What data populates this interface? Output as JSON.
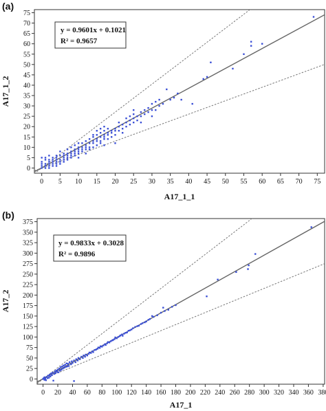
{
  "chart_data": [
    {
      "panel_label": "(a)",
      "type": "scatter",
      "xlabel": "A17_1_1",
      "ylabel": "A17_1_2",
      "xlim": [
        -2,
        77
      ],
      "ylim": [
        -2.5,
        76.5
      ],
      "xticks": [
        0,
        5,
        10,
        15,
        20,
        25,
        30,
        35,
        40,
        45,
        50,
        55,
        60,
        65,
        70,
        75
      ],
      "yticks": [
        0,
        5,
        10,
        15,
        20,
        25,
        30,
        35,
        40,
        45,
        50,
        55,
        60,
        65,
        70,
        75
      ],
      "grid": false,
      "equation": "y = 0.9601x + 0.1021",
      "r2": "R² = 0.9657",
      "fit": {
        "slope": 0.9601,
        "intercept": 0.1021
      },
      "bounds": [
        {
          "slope": 1.35,
          "intercept": 0
        },
        {
          "slope": 0.65,
          "intercept": 0
        }
      ],
      "colors": {
        "points": "#3a4fd6",
        "fit": "#666666",
        "bounds": "#777777"
      },
      "points": [
        [
          0,
          0
        ],
        [
          0,
          1
        ],
        [
          0,
          2
        ],
        [
          0,
          3
        ],
        [
          0,
          5
        ],
        [
          1,
          0
        ],
        [
          1,
          1
        ],
        [
          1,
          2
        ],
        [
          1,
          4
        ],
        [
          1,
          5
        ],
        [
          2,
          0
        ],
        [
          2,
          1
        ],
        [
          2,
          2
        ],
        [
          2,
          3
        ],
        [
          2,
          4
        ],
        [
          2,
          6
        ],
        [
          3,
          1
        ],
        [
          3,
          2
        ],
        [
          3,
          3
        ],
        [
          3,
          4
        ],
        [
          3,
          5
        ],
        [
          4,
          1
        ],
        [
          4,
          2
        ],
        [
          4,
          3
        ],
        [
          4,
          4
        ],
        [
          4,
          5
        ],
        [
          4,
          6
        ],
        [
          5,
          2
        ],
        [
          5,
          3
        ],
        [
          5,
          4
        ],
        [
          5,
          6
        ],
        [
          5,
          8
        ],
        [
          6,
          3
        ],
        [
          6,
          4
        ],
        [
          6,
          5
        ],
        [
          6,
          6
        ],
        [
          6,
          7
        ],
        [
          7,
          4
        ],
        [
          7,
          5
        ],
        [
          7,
          6
        ],
        [
          7,
          7
        ],
        [
          7,
          9
        ],
        [
          8,
          5
        ],
        [
          8,
          6
        ],
        [
          8,
          7
        ],
        [
          8,
          8
        ],
        [
          8,
          10
        ],
        [
          9,
          6
        ],
        [
          9,
          7
        ],
        [
          9,
          8
        ],
        [
          9,
          9
        ],
        [
          9,
          11
        ],
        [
          10,
          5
        ],
        [
          10,
          7
        ],
        [
          10,
          8
        ],
        [
          10,
          9
        ],
        [
          10,
          10
        ],
        [
          10,
          12
        ],
        [
          11,
          8
        ],
        [
          11,
          9
        ],
        [
          11,
          10
        ],
        [
          11,
          12
        ],
        [
          12,
          7
        ],
        [
          12,
          9
        ],
        [
          12,
          10
        ],
        [
          12,
          11
        ],
        [
          12,
          13
        ],
        [
          13,
          9
        ],
        [
          13,
          10
        ],
        [
          13,
          12
        ],
        [
          13,
          14
        ],
        [
          14,
          10
        ],
        [
          14,
          12
        ],
        [
          14,
          13
        ],
        [
          14,
          15
        ],
        [
          14,
          16
        ],
        [
          15,
          11
        ],
        [
          15,
          13
        ],
        [
          15,
          14
        ],
        [
          15,
          16
        ],
        [
          15,
          18
        ],
        [
          16,
          12
        ],
        [
          16,
          13
        ],
        [
          16,
          15
        ],
        [
          16,
          17
        ],
        [
          16,
          19
        ],
        [
          17,
          11
        ],
        [
          17,
          14
        ],
        [
          17,
          15
        ],
        [
          17,
          16
        ],
        [
          17,
          18
        ],
        [
          17,
          20
        ],
        [
          18,
          14
        ],
        [
          18,
          16
        ],
        [
          18,
          17
        ],
        [
          18,
          19
        ],
        [
          19,
          15
        ],
        [
          19,
          17
        ],
        [
          19,
          18
        ],
        [
          20,
          12
        ],
        [
          20,
          16
        ],
        [
          20,
          18
        ],
        [
          20,
          19
        ],
        [
          21,
          18
        ],
        [
          21,
          20
        ],
        [
          21,
          22
        ],
        [
          22,
          17
        ],
        [
          22,
          19
        ],
        [
          22,
          21
        ],
        [
          23,
          20
        ],
        [
          23,
          22
        ],
        [
          23,
          24
        ],
        [
          24,
          21
        ],
        [
          24,
          23
        ],
        [
          24,
          25
        ],
        [
          25,
          22
        ],
        [
          25,
          24
        ],
        [
          25,
          26
        ],
        [
          25,
          28
        ],
        [
          26,
          23
        ],
        [
          26,
          25
        ],
        [
          27,
          22
        ],
        [
          27,
          25
        ],
        [
          27,
          27
        ],
        [
          28,
          26
        ],
        [
          28,
          28
        ],
        [
          29,
          27
        ],
        [
          29,
          29
        ],
        [
          30,
          25
        ],
        [
          30,
          28
        ],
        [
          30,
          31
        ],
        [
          31,
          28
        ],
        [
          31,
          32
        ],
        [
          32,
          30
        ],
        [
          32,
          33
        ],
        [
          33,
          31
        ],
        [
          34,
          38
        ],
        [
          35,
          33
        ],
        [
          36,
          34
        ],
        [
          37,
          36
        ],
        [
          38,
          33
        ],
        [
          41,
          31
        ],
        [
          44,
          43
        ],
        [
          45,
          44
        ],
        [
          46,
          51
        ],
        [
          52,
          48
        ],
        [
          55,
          55
        ],
        [
          57,
          59
        ],
        [
          57,
          61
        ],
        [
          60,
          60
        ],
        [
          74,
          73
        ]
      ]
    },
    {
      "panel_label": "(b)",
      "type": "scatter",
      "xlabel": "A17_1",
      "ylabel": "A17_2",
      "xlim": [
        -8,
        382
      ],
      "ylim": [
        -12.5,
        382.5
      ],
      "xticks": [
        0,
        20,
        40,
        60,
        80,
        100,
        120,
        140,
        160,
        180,
        200,
        220,
        240,
        260,
        280,
        300,
        320,
        340,
        360,
        380
      ],
      "yticks": [
        0,
        25,
        50,
        75,
        100,
        125,
        150,
        175,
        200,
        225,
        250,
        275,
        300,
        325,
        350,
        375
      ],
      "grid": false,
      "equation": "y = 0.9833x + 0.3028",
      "r2": "R² = 0.9896",
      "fit": {
        "slope": 0.9833,
        "intercept": 0.3028
      },
      "bounds": [
        {
          "slope": 1.35,
          "intercept": 0
        },
        {
          "slope": 0.72,
          "intercept": 0
        }
      ],
      "colors": {
        "points": "#3a4fd6",
        "fit": "#666666",
        "bounds": "#777777"
      },
      "points": [
        [
          0,
          0
        ],
        [
          1,
          2
        ],
        [
          2,
          -2
        ],
        [
          2,
          4
        ],
        [
          3,
          1
        ],
        [
          4,
          -3
        ],
        [
          5,
          5
        ],
        [
          6,
          2
        ],
        [
          7,
          8
        ],
        [
          8,
          3
        ],
        [
          9,
          10
        ],
        [
          10,
          6
        ],
        [
          11,
          13
        ],
        [
          12,
          9
        ],
        [
          13,
          15
        ],
        [
          14,
          -4
        ],
        [
          15,
          12
        ],
        [
          16,
          18
        ],
        [
          17,
          14
        ],
        [
          18,
          20
        ],
        [
          19,
          17
        ],
        [
          20,
          22
        ],
        [
          21,
          16
        ],
        [
          22,
          25
        ],
        [
          23,
          20
        ],
        [
          24,
          28
        ],
        [
          25,
          22
        ],
        [
          26,
          30
        ],
        [
          27,
          25
        ],
        [
          28,
          32
        ],
        [
          29,
          27
        ],
        [
          30,
          34
        ],
        [
          31,
          29
        ],
        [
          32,
          37
        ],
        [
          33,
          30
        ],
        [
          34,
          36
        ],
        [
          35,
          31
        ],
        [
          36,
          40
        ],
        [
          38,
          35
        ],
        [
          39,
          42
        ],
        [
          40,
          38
        ],
        [
          42,
          -5
        ],
        [
          42,
          44
        ],
        [
          44,
          40
        ],
        [
          45,
          47
        ],
        [
          47,
          44
        ],
        [
          48,
          50
        ],
        [
          50,
          47
        ],
        [
          52,
          53
        ],
        [
          54,
          50
        ],
        [
          55,
          56
        ],
        [
          57,
          53
        ],
        [
          58,
          58
        ],
        [
          60,
          56
        ],
        [
          62,
          60
        ],
        [
          63,
          63
        ],
        [
          65,
          62
        ],
        [
          67,
          66
        ],
        [
          68,
          64
        ],
        [
          70,
          69
        ],
        [
          72,
          70
        ],
        [
          74,
          72
        ],
        [
          75,
          75
        ],
        [
          77,
          74
        ],
        [
          78,
          78
        ],
        [
          80,
          77
        ],
        [
          82,
          80
        ],
        [
          84,
          83
        ],
        [
          85,
          81
        ],
        [
          87,
          85
        ],
        [
          88,
          88
        ],
        [
          90,
          87
        ],
        [
          92,
          90
        ],
        [
          94,
          92
        ],
        [
          95,
          93
        ],
        [
          97,
          95
        ],
        [
          98,
          99
        ],
        [
          100,
          97
        ],
        [
          102,
          100
        ],
        [
          104,
          102
        ],
        [
          105,
          104
        ],
        [
          107,
          106
        ],
        [
          108,
          103
        ],
        [
          110,
          108
        ],
        [
          112,
          110
        ],
        [
          114,
          111
        ],
        [
          116,
          115
        ],
        [
          118,
          116
        ],
        [
          120,
          118
        ],
        [
          122,
          121
        ],
        [
          125,
          124
        ],
        [
          128,
          126
        ],
        [
          130,
          127
        ],
        [
          133,
          131
        ],
        [
          135,
          133
        ],
        [
          138,
          135
        ],
        [
          140,
          137
        ],
        [
          143,
          141
        ],
        [
          145,
          143
        ],
        [
          148,
          150
        ],
        [
          150,
          148
        ],
        [
          155,
          152
        ],
        [
          160,
          158
        ],
        [
          163,
          170
        ],
        [
          165,
          162
        ],
        [
          170,
          165
        ],
        [
          175,
          172
        ],
        [
          180,
          176
        ],
        [
          222,
          197
        ],
        [
          237,
          237
        ],
        [
          262,
          255
        ],
        [
          278,
          262
        ],
        [
          279,
          271
        ],
        [
          288,
          298
        ],
        [
          364,
          362
        ]
      ]
    }
  ]
}
